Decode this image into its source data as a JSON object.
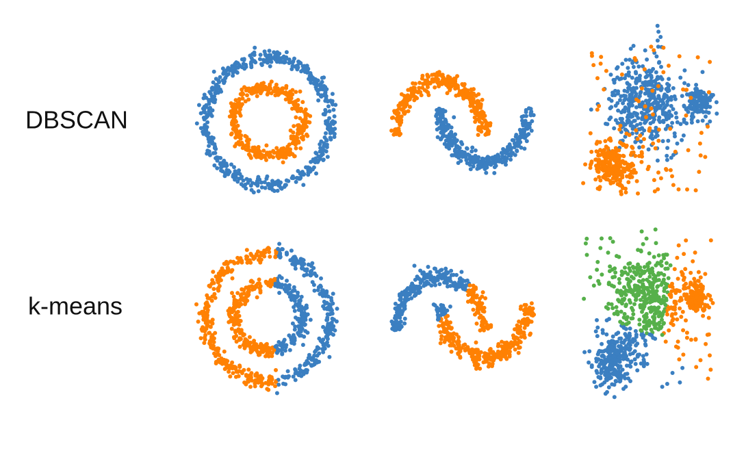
{
  "rows": [
    {
      "label": "DBSCAN"
    },
    {
      "label": "k-means"
    }
  ]
}
